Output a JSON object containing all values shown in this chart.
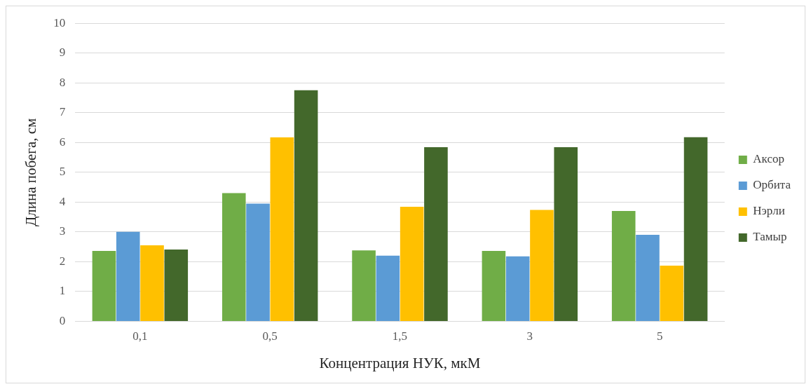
{
  "chart_data": {
    "type": "bar",
    "xlabel": "Концентрация НУК, мкМ",
    "ylabel": "Длина побега, см",
    "categories": [
      "0,1",
      "0,5",
      "1,5",
      "3",
      "5"
    ],
    "series": [
      {
        "name": "Аксор",
        "color": "#70ad47",
        "values": [
          2.36,
          4.3,
          2.38,
          2.36,
          3.7
        ]
      },
      {
        "name": "Орбита",
        "color": "#5b9bd5",
        "values": [
          3.0,
          3.95,
          2.2,
          2.18,
          2.9
        ]
      },
      {
        "name": "Нэрли",
        "color": "#ffc000",
        "values": [
          2.55,
          6.17,
          3.84,
          3.74,
          1.87
        ]
      },
      {
        "name": "Тамыр",
        "color": "#43682b",
        "values": [
          2.41,
          7.75,
          5.84,
          5.84,
          6.18
        ]
      }
    ],
    "ylim": [
      0,
      10
    ],
    "yticks": [
      0,
      1,
      2,
      3,
      4,
      5,
      6,
      7,
      8,
      9,
      10
    ],
    "grid": "y",
    "legend": "right"
  }
}
